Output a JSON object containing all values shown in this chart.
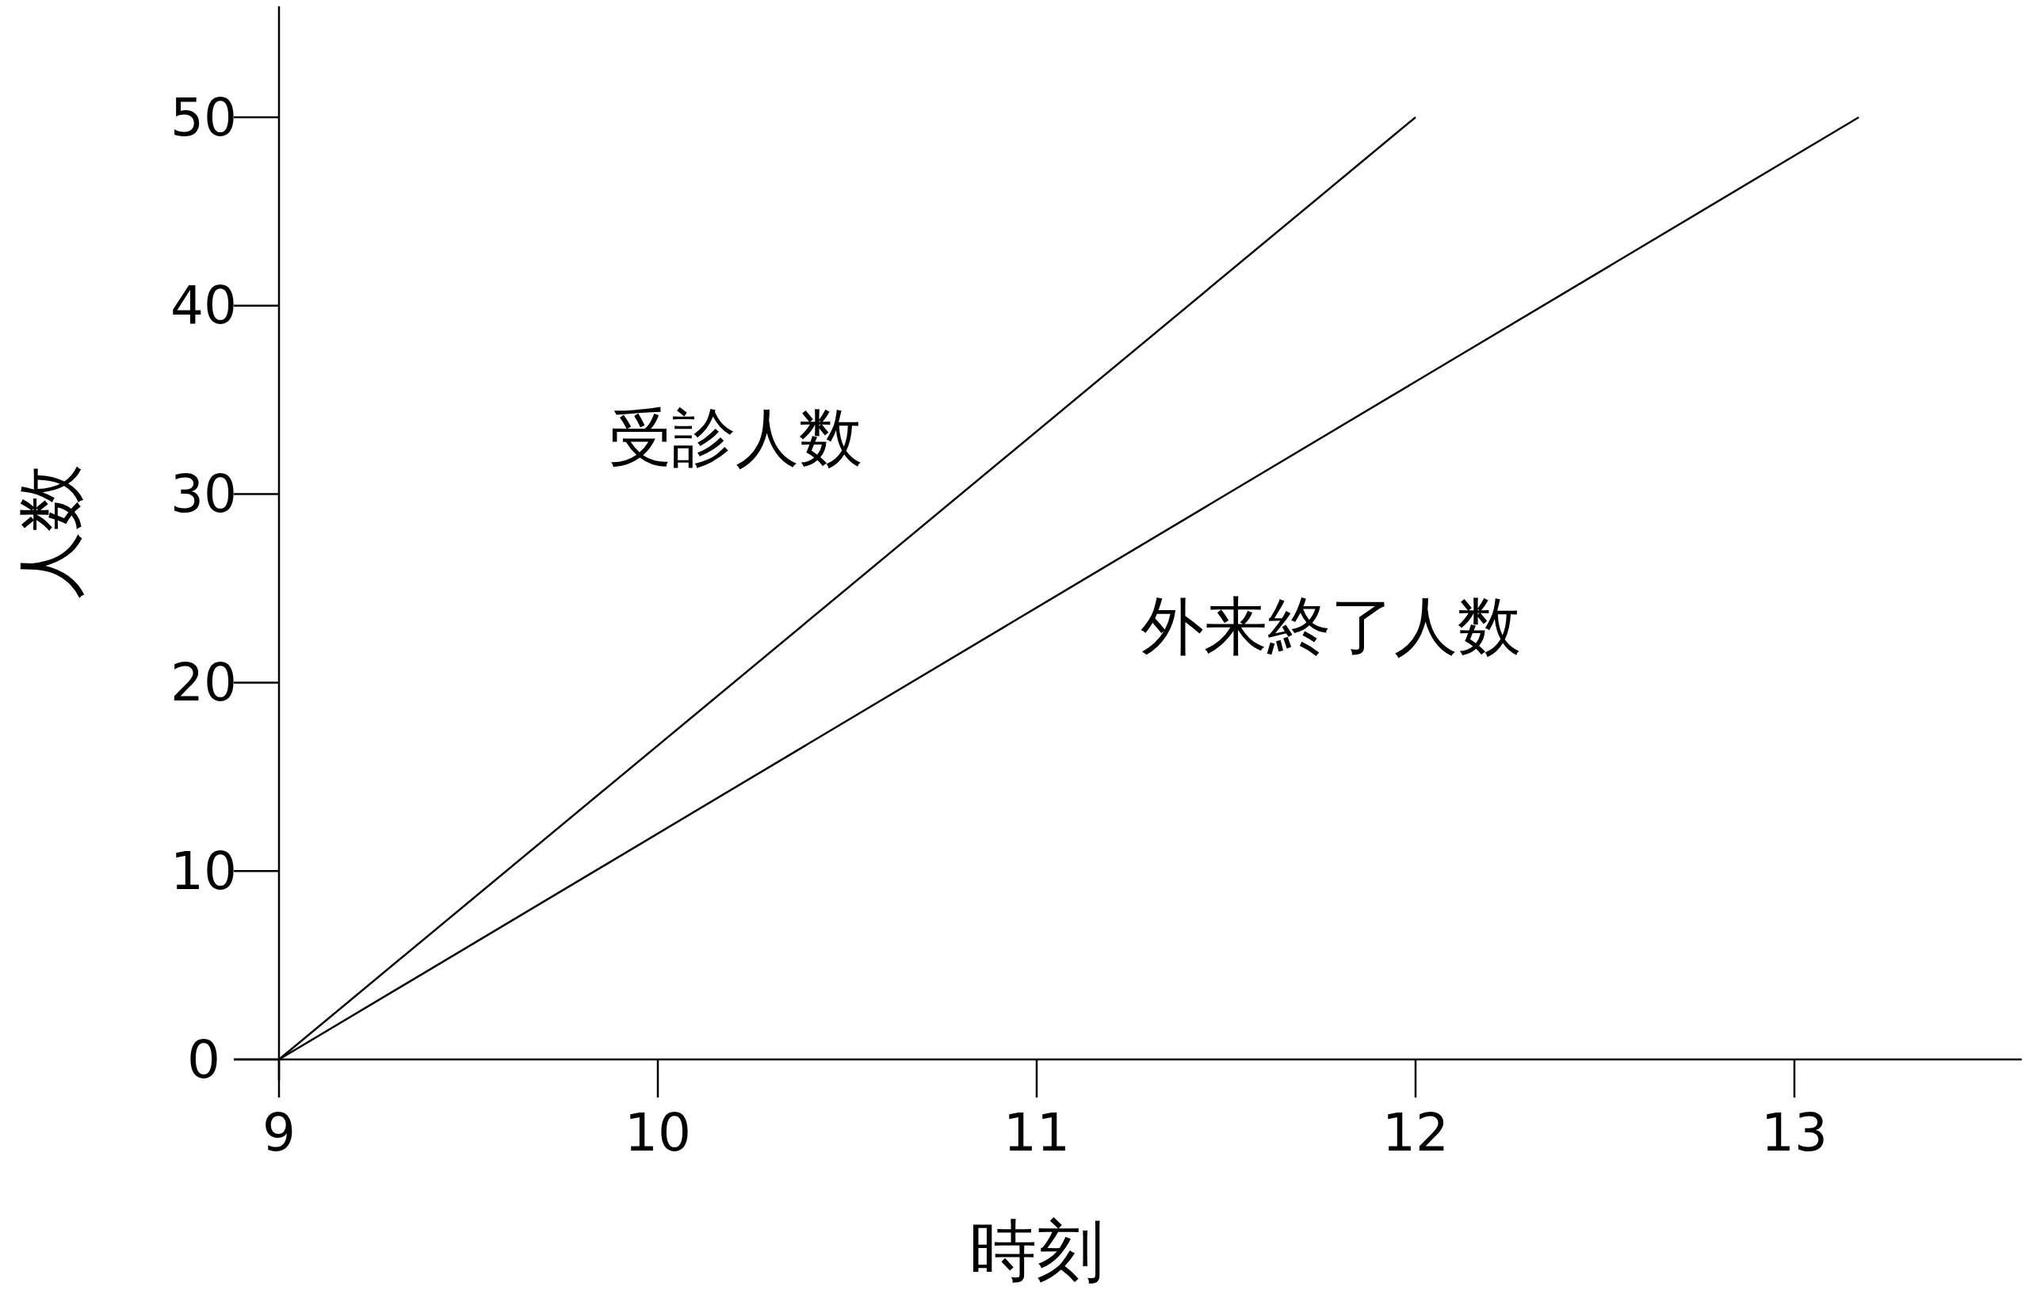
{
  "chart_data": {
    "type": "line",
    "xlabel": "時刻",
    "ylabel": "人数",
    "xlim": [
      9,
      13.6
    ],
    "ylim": [
      0,
      56
    ],
    "xticks": [
      9,
      10,
      11,
      12,
      13
    ],
    "yticks": [
      0,
      10,
      20,
      30,
      40,
      50
    ],
    "series": [
      {
        "name": "受診人数",
        "color": "#000000",
        "x": [
          9,
          12
        ],
        "values": [
          0,
          50
        ]
      },
      {
        "name": "外来終了人数",
        "color": "#000000",
        "x": [
          9,
          13.17
        ],
        "values": [
          0,
          50
        ]
      }
    ]
  }
}
